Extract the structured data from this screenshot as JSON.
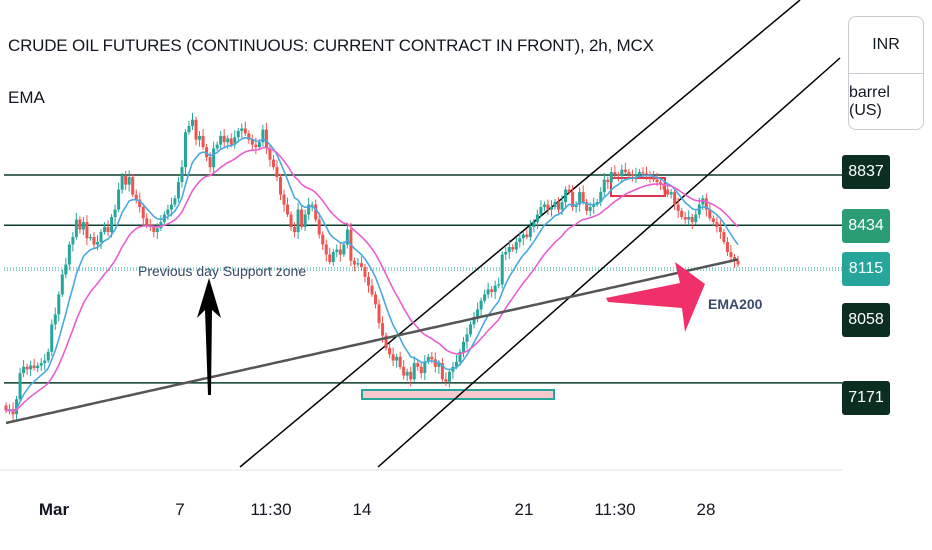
{
  "title": "CRUDE OIL FUTURES (CONTINUOUS: CURRENT CONTRACT IN FRONT), 2h, MCX",
  "indicator_label": "EMA",
  "units": {
    "currency": "INR",
    "unit": "barrel (US)"
  },
  "x_ticks": [
    {
      "label": "Mar",
      "bold": true
    },
    {
      "label": "7",
      "bold": false
    },
    {
      "label": "11:30",
      "bold": false
    },
    {
      "label": "14",
      "bold": false
    },
    {
      "label": "21",
      "bold": false
    },
    {
      "label": "11:30",
      "bold": false
    },
    {
      "label": "28",
      "bold": false
    }
  ],
  "price_tags": [
    {
      "label": "8837",
      "color": "#0b2e21"
    },
    {
      "label": "8434",
      "color": "#2a9d75"
    },
    {
      "label": "8115",
      "color": "#26a69a"
    },
    {
      "label": "8058",
      "color": "#0b2e21"
    },
    {
      "label": "7171",
      "color": "#0b2e21"
    }
  ],
  "annotations": {
    "support_text": "Previous day Support zone",
    "ema200_text": "EMA200"
  },
  "colors": {
    "up": "#26a69a",
    "down": "#ef5350",
    "ema_fast": "#4aa8e0",
    "ema_mid": "#ea5fd0",
    "ema200": "#555555",
    "level_line": "#0b3d2c",
    "arrow_pink": "#f0306a"
  },
  "chart_data": {
    "type": "candlestick",
    "title": "CRUDE OIL FUTURES (CONTINUOUS: CURRENT CONTRACT IN FRONT), 2h, MCX",
    "ylim": [
      6700,
      9400
    ],
    "horizontal_levels": [
      8837,
      8434,
      8115,
      8058,
      7171
    ],
    "close": [
      6950,
      6960,
      6920,
      7040,
      7250,
      7300,
      7280,
      7310,
      7290,
      7310,
      7330,
      7350,
      7420,
      7640,
      7720,
      7880,
      8040,
      8120,
      8280,
      8340,
      8480,
      8400,
      8460,
      8330,
      8340,
      8280,
      8300,
      8380,
      8420,
      8380,
      8500,
      8560,
      8720,
      8830,
      8760,
      8820,
      8680,
      8640,
      8580,
      8490,
      8430,
      8420,
      8380,
      8410,
      8460,
      8520,
      8560,
      8600,
      8650,
      8780,
      8900,
      9180,
      9230,
      9280,
      9120,
      9150,
      9060,
      8980,
      8900,
      9050,
      9080,
      9150,
      9100,
      9130,
      9080,
      9140,
      9190,
      9210,
      9170,
      9120,
      9080,
      9060,
      9100,
      9200,
      9050,
      8960,
      8900,
      8820,
      8680,
      8600,
      8520,
      8420,
      8380,
      8560,
      8420,
      8520,
      8600,
      8600,
      8480,
      8360,
      8280,
      8200,
      8140,
      8220,
      8240,
      8200,
      8280,
      8400,
      8150,
      8120,
      8130,
      8100,
      8020,
      7950,
      7880,
      7800,
      7650,
      7550,
      7450,
      7400,
      7350,
      7380,
      7300,
      7230,
      7260,
      7200,
      7330,
      7300,
      7250,
      7340,
      7380,
      7360,
      7300,
      7330,
      7200,
      7180,
      7260,
      7300,
      7340,
      7420,
      7500,
      7560,
      7640,
      7700,
      7760,
      7830,
      7880,
      7920,
      7900,
      7950,
      7960,
      8200,
      8220,
      8260,
      8240,
      8300,
      8330,
      8360,
      8340,
      8420,
      8460,
      8520,
      8580,
      8600,
      8560,
      8580,
      8620,
      8560,
      8620,
      8720,
      8700,
      8580,
      8600,
      8700,
      8620,
      8550,
      8580,
      8600,
      8620,
      8700,
      8800,
      8780,
      8860,
      8840,
      8830,
      8880,
      8860,
      8840,
      8830,
      8840,
      8860,
      8850,
      8840,
      8830,
      8800,
      8780,
      8760,
      8720,
      8680,
      8700,
      8600,
      8550,
      8500,
      8480,
      8500,
      8460,
      8520,
      8600,
      8650,
      8560,
      8490,
      8460,
      8420,
      8380,
      8300,
      8220,
      8180,
      8150,
      8120
    ]
  }
}
